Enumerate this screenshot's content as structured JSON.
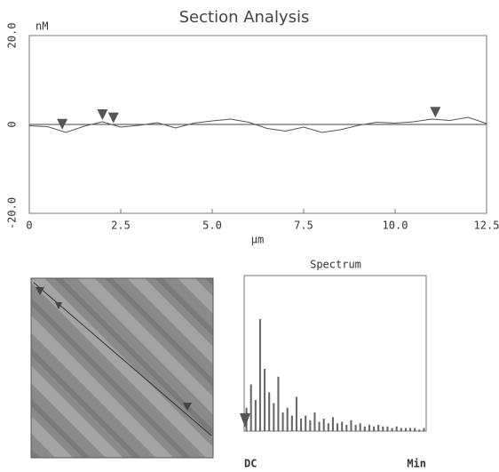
{
  "chart_data": [
    {
      "type": "line",
      "title": "Section Analysis",
      "y_unit": "nM",
      "x_unit": "μm",
      "x": [
        0,
        0.5,
        1,
        1.5,
        2,
        2.5,
        3,
        3.5,
        4,
        4.5,
        5,
        5.5,
        6,
        6.5,
        7,
        7.5,
        8,
        8.5,
        9,
        9.5,
        10,
        10.5,
        11,
        11.5,
        12,
        12.5
      ],
      "values": [
        -0.3,
        -0.5,
        -1.8,
        -0.4,
        0.6,
        -0.6,
        -0.2,
        0.4,
        -0.8,
        0.3,
        0.8,
        1.2,
        0.5,
        -0.9,
        -1.5,
        -0.6,
        -1.8,
        -1.2,
        -0.2,
        0.5,
        0.3,
        0.6,
        1.2,
        0.9,
        1.6,
        0.2
      ],
      "cursors": [
        0.9,
        2.0,
        2.3,
        11.1
      ],
      "color": "#555",
      "xlim": [
        0,
        12.5
      ],
      "ylim": [
        -20,
        20
      ],
      "xticks": [
        0,
        2.5,
        {
          "value": 5,
          "label": "5.0"
        },
        7.5,
        {
          "value": 10,
          "label": "10.0"
        },
        12.5
      ],
      "yticks": [
        {
          "value": 20,
          "label": "20.0"
        },
        0,
        {
          "value": -20,
          "label": "-20.0"
        }
      ]
    },
    {
      "type": "bar",
      "title": "Spectrum",
      "x_start_label": "DC",
      "x_end_label": "Min",
      "values": [
        15,
        30,
        20,
        72,
        40,
        25,
        18,
        35,
        12,
        15,
        10,
        22,
        8,
        10,
        7,
        12,
        6,
        8,
        5,
        9,
        5,
        6,
        4,
        7,
        4,
        5,
        3,
        4,
        3,
        4,
        3,
        3,
        2,
        3,
        2,
        2,
        2,
        2,
        1,
        2
      ],
      "color": "#666",
      "ylim": [
        0,
        100
      ]
    }
  ]
}
